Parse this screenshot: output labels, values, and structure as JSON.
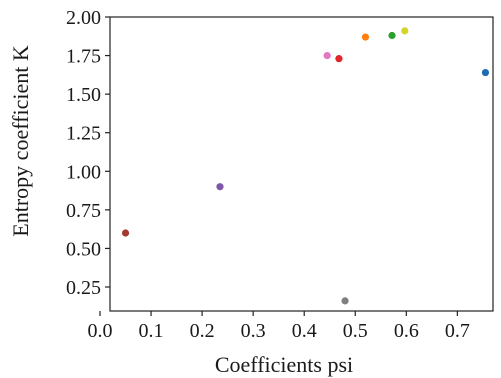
{
  "chart_data": {
    "type": "scatter",
    "xlabel": "Coefficients psi",
    "ylabel": "Entropy coefficient K",
    "xlim": [
      0.0,
      0.76
    ],
    "ylim": [
      0.14,
      2.0
    ],
    "x_ticks": [
      0.0,
      0.1,
      0.2,
      0.3,
      0.4,
      0.5,
      0.6,
      0.7
    ],
    "x_tick_labels": [
      "0.0",
      "0.1",
      "0.2",
      "0.3",
      "0.4",
      "0.5",
      "0.6",
      "0.7"
    ],
    "y_ticks": [
      0.25,
      0.5,
      0.75,
      1.0,
      1.25,
      1.5,
      1.75,
      2.0
    ],
    "y_tick_labels": [
      "0.25",
      "0.50",
      "0.75",
      "1.00",
      "1.25",
      "1.50",
      "1.75",
      "2.00"
    ],
    "grid": false,
    "points": [
      {
        "x": 0.05,
        "y": 0.6,
        "color": "#a23a2e"
      },
      {
        "x": 0.235,
        "y": 0.9,
        "color": "#7e57a8"
      },
      {
        "x": 0.445,
        "y": 1.75,
        "color": "#e377c2"
      },
      {
        "x": 0.468,
        "y": 1.73,
        "color": "#e3242b"
      },
      {
        "x": 0.48,
        "y": 0.16,
        "color": "#7f7f7f"
      },
      {
        "x": 0.52,
        "y": 1.87,
        "color": "#ff7f0e"
      },
      {
        "x": 0.572,
        "y": 1.88,
        "color": "#2ca02c"
      },
      {
        "x": 0.597,
        "y": 1.91,
        "color": "#d4d42a"
      },
      {
        "x": 0.755,
        "y": 1.64,
        "color": "#1f6ab4"
      }
    ]
  }
}
